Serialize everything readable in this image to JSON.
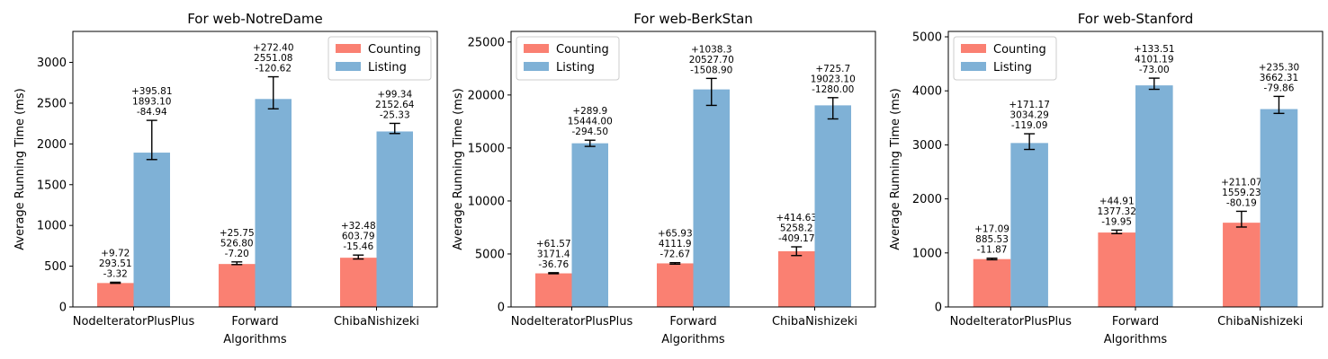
{
  "chart_data": [
    {
      "type": "bar",
      "title": "For web-NotreDame",
      "xlabel": "Algorithms",
      "ylabel": "Average Running Time (ms)",
      "ylim": [
        0,
        3380
      ],
      "yticks": [
        0,
        500,
        1000,
        1500,
        2000,
        2500,
        3000
      ],
      "legend": "top-right",
      "categories": [
        "NodeIteratorPlusPlus",
        "Forward",
        "ChibaNishizeki"
      ],
      "series": [
        {
          "name": "Counting",
          "color": "#fa8072",
          "values": [
            293.51,
            526.8,
            603.79
          ],
          "err_plus": [
            9.72,
            25.75,
            32.48
          ],
          "err_minus": [
            3.32,
            7.2,
            15.46
          ],
          "labels": [
            [
              "+9.72",
              "293.51",
              "-3.32"
            ],
            [
              "+25.75",
              "526.80",
              "-7.20"
            ],
            [
              "+32.48",
              "603.79",
              "-15.46"
            ]
          ]
        },
        {
          "name": "Listing",
          "color": "#7fb1d6",
          "values": [
            1893.1,
            2551.08,
            2152.64
          ],
          "err_plus": [
            395.81,
            272.4,
            99.34
          ],
          "err_minus": [
            84.94,
            120.62,
            25.33
          ],
          "labels": [
            [
              "+395.81",
              "1893.10",
              "-84.94"
            ],
            [
              "+272.40",
              "2551.08",
              "-120.62"
            ],
            [
              "+99.34",
              "2152.64",
              "-25.33"
            ]
          ]
        }
      ]
    },
    {
      "type": "bar",
      "title": "For web-BerkStan",
      "xlabel": "Algorithms",
      "ylabel": "Average Running Time (ms)",
      "ylim": [
        0,
        26000
      ],
      "yticks": [
        0,
        5000,
        10000,
        15000,
        20000,
        25000
      ],
      "legend": "top-left",
      "categories": [
        "NodeIteratorPlusPlus",
        "Forward",
        "ChibaNishizeki"
      ],
      "series": [
        {
          "name": "Counting",
          "color": "#fa8072",
          "values": [
            3171.4,
            4111.9,
            5258.2
          ],
          "err_plus": [
            61.57,
            65.93,
            414.63
          ],
          "err_minus": [
            36.76,
            72.67,
            409.17
          ],
          "labels": [
            [
              "+61.57",
              "3171.4",
              "-36.76"
            ],
            [
              "+65.93",
              "4111.9",
              "-72.67"
            ],
            [
              "+414.63",
              "5258.2",
              "-409.17"
            ]
          ]
        },
        {
          "name": "Listing",
          "color": "#7fb1d6",
          "values": [
            15444.0,
            20527.7,
            19023.1
          ],
          "err_plus": [
            289.9,
            1038.3,
            725.7
          ],
          "err_minus": [
            294.5,
            1508.9,
            1280.0
          ],
          "labels": [
            [
              "+289.9",
              "15444.00",
              "-294.50"
            ],
            [
              "+1038.3",
              "20527.70",
              "-1508.90"
            ],
            [
              "+725.7",
              "19023.10",
              "-1280.00"
            ]
          ]
        }
      ]
    },
    {
      "type": "bar",
      "title": "For web-Stanford",
      "xlabel": "Algorithms",
      "ylabel": "Average Running Time (ms)",
      "ylim": [
        0,
        5100
      ],
      "yticks": [
        0,
        1000,
        2000,
        3000,
        4000,
        5000
      ],
      "legend": "top-left",
      "categories": [
        "NodeIteratorPlusPlus",
        "Forward",
        "ChibaNishizeki"
      ],
      "series": [
        {
          "name": "Counting",
          "color": "#fa8072",
          "values": [
            885.53,
            1377.32,
            1559.23
          ],
          "err_plus": [
            17.09,
            44.91,
            211.07
          ],
          "err_minus": [
            11.87,
            19.95,
            80.19
          ],
          "labels": [
            [
              "+17.09",
              "885.53",
              "-11.87"
            ],
            [
              "+44.91",
              "1377.32",
              "-19.95"
            ],
            [
              "+211.07",
              "1559.23",
              "-80.19"
            ]
          ]
        },
        {
          "name": "Listing",
          "color": "#7fb1d6",
          "values": [
            3034.29,
            4101.19,
            3662.31
          ],
          "err_plus": [
            171.17,
            133.51,
            235.3
          ],
          "err_minus": [
            119.09,
            73.0,
            79.86
          ],
          "labels": [
            [
              "+171.17",
              "3034.29",
              "-119.09"
            ],
            [
              "+133.51",
              "4101.19",
              "-73.00"
            ],
            [
              "+235.30",
              "3662.31",
              "-79.86"
            ]
          ]
        }
      ]
    }
  ]
}
